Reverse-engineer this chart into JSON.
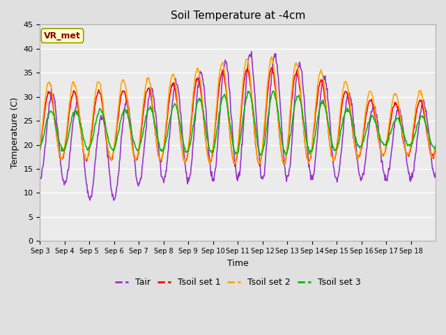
{
  "title": "Soil Temperature at -4cm",
  "xlabel": "Time",
  "ylabel": "Temperature (C)",
  "annotation_text": "VR_met",
  "annotation_color": "#8B0000",
  "annotation_bg": "#FFFFCC",
  "annotation_edge": "#999900",
  "ylim": [
    0,
    45
  ],
  "yticks": [
    0,
    5,
    10,
    15,
    20,
    25,
    30,
    35,
    40,
    45
  ],
  "xtick_labels": [
    "Sep 3",
    "Sep 4",
    "Sep 5",
    "Sep 6",
    "Sep 7",
    "Sep 8",
    "Sep 9",
    "Sep 10",
    "Sep 11",
    "Sep 12",
    "Sep 13",
    "Sep 14",
    "Sep 15",
    "Sep 16",
    "Sep 17",
    "Sep 18"
  ],
  "n_days": 16,
  "points_per_day": 48,
  "colors": {
    "Tair": "#9932CC",
    "Tsoil1": "#FF0000",
    "Tsoil2": "#FFA500",
    "Tsoil3": "#00BB00"
  },
  "line_width": 1.2,
  "bg_color": "#E0E0E0",
  "plot_bg": "#EBEBEB",
  "grid_color": "#FFFFFF",
  "legend_labels": [
    "Tair",
    "Tsoil set 1",
    "Tsoil set 2",
    "Tsoil set 3"
  ]
}
